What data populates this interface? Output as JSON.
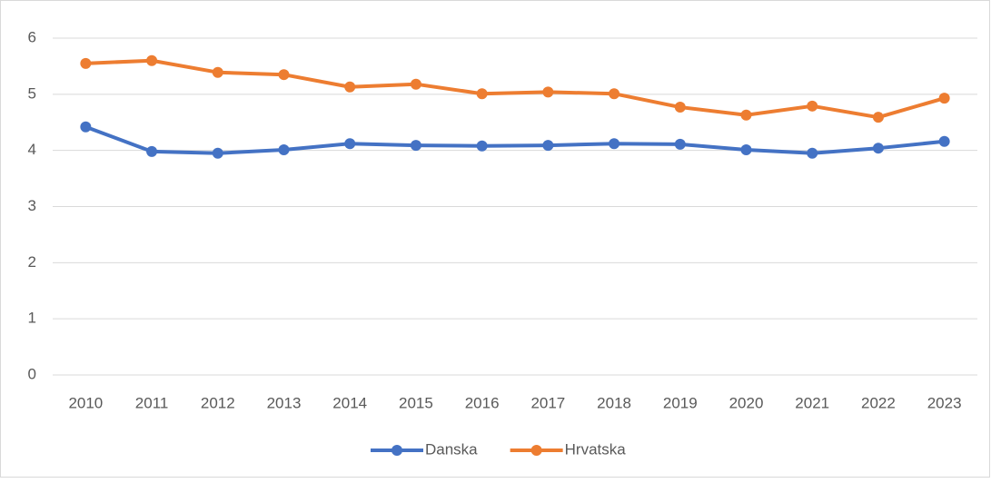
{
  "chart_data": {
    "type": "line",
    "categories": [
      "2010",
      "2011",
      "2012",
      "2013",
      "2014",
      "2015",
      "2016",
      "2017",
      "2018",
      "2019",
      "2020",
      "2021",
      "2022",
      "2023"
    ],
    "series": [
      {
        "name": "Danska",
        "color": "#4472c4",
        "values": [
          4.42,
          3.98,
          3.95,
          4.01,
          4.12,
          4.09,
          4.08,
          4.09,
          4.12,
          4.11,
          4.01,
          3.95,
          4.04,
          4.16
        ]
      },
      {
        "name": "Hrvatska",
        "color": "#ed7d31",
        "values": [
          5.55,
          5.6,
          5.39,
          5.35,
          5.13,
          5.18,
          5.01,
          5.04,
          5.01,
          4.77,
          4.63,
          4.79,
          4.59,
          4.93
        ]
      }
    ],
    "ylim": [
      0,
      6
    ],
    "yticks": [
      0,
      1,
      2,
      3,
      4,
      5,
      6
    ],
    "grid": true,
    "legend": "bottom"
  }
}
